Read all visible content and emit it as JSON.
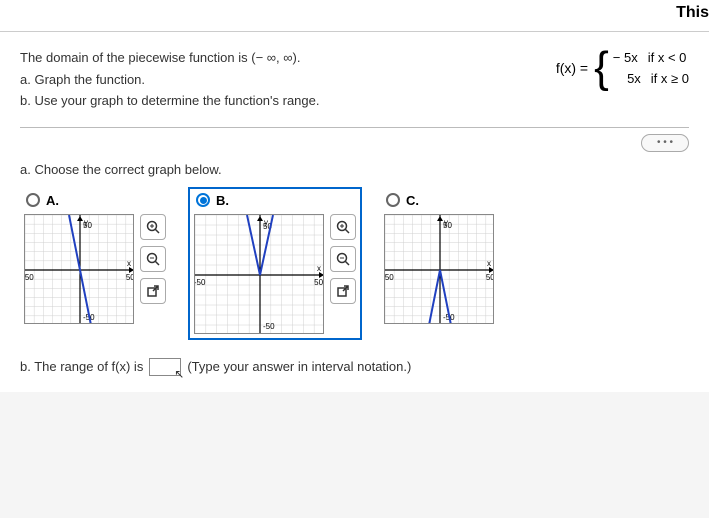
{
  "header_fragment": "This",
  "question": {
    "intro": "The domain of the piecewise function is (− ∞, ∞).",
    "part_a": "a. Graph the function.",
    "part_b": "b. Use your graph to determine the function's range."
  },
  "piecewise": {
    "label": "f(x) =",
    "case1_expr": "− 5x",
    "case1_cond": "if  x < 0",
    "case2_expr": "5x",
    "case2_cond": "if  x ≥ 0"
  },
  "expand_label": "• • •",
  "section_a_prompt": "a. Choose the correct graph below.",
  "choices": {
    "A": {
      "label": "A.",
      "selected": false
    },
    "B": {
      "label": "B.",
      "selected": true
    },
    "C": {
      "label": "C.",
      "selected": false
    }
  },
  "graph": {
    "size": 110,
    "xmin": -60,
    "xmax": 60,
    "ymin": -60,
    "ymax": 60,
    "tick_label": "50",
    "neg_tick_label": "-50",
    "x_axis_label": "x",
    "y_axis_label": "y",
    "grid_color": "#d0d0d0",
    "axis_color": "#000000",
    "lineA_color": "#2040c0",
    "lineB_color": "#2040c0",
    "lineC_color": "#2040c0"
  },
  "tools": {
    "zoom_in": "zoom-in-icon",
    "zoom_out": "zoom-out-icon",
    "popout": "popout-icon"
  },
  "part_b_prefix": "b. The range of f(x) is",
  "part_b_suffix": "(Type your answer in interval notation.)"
}
